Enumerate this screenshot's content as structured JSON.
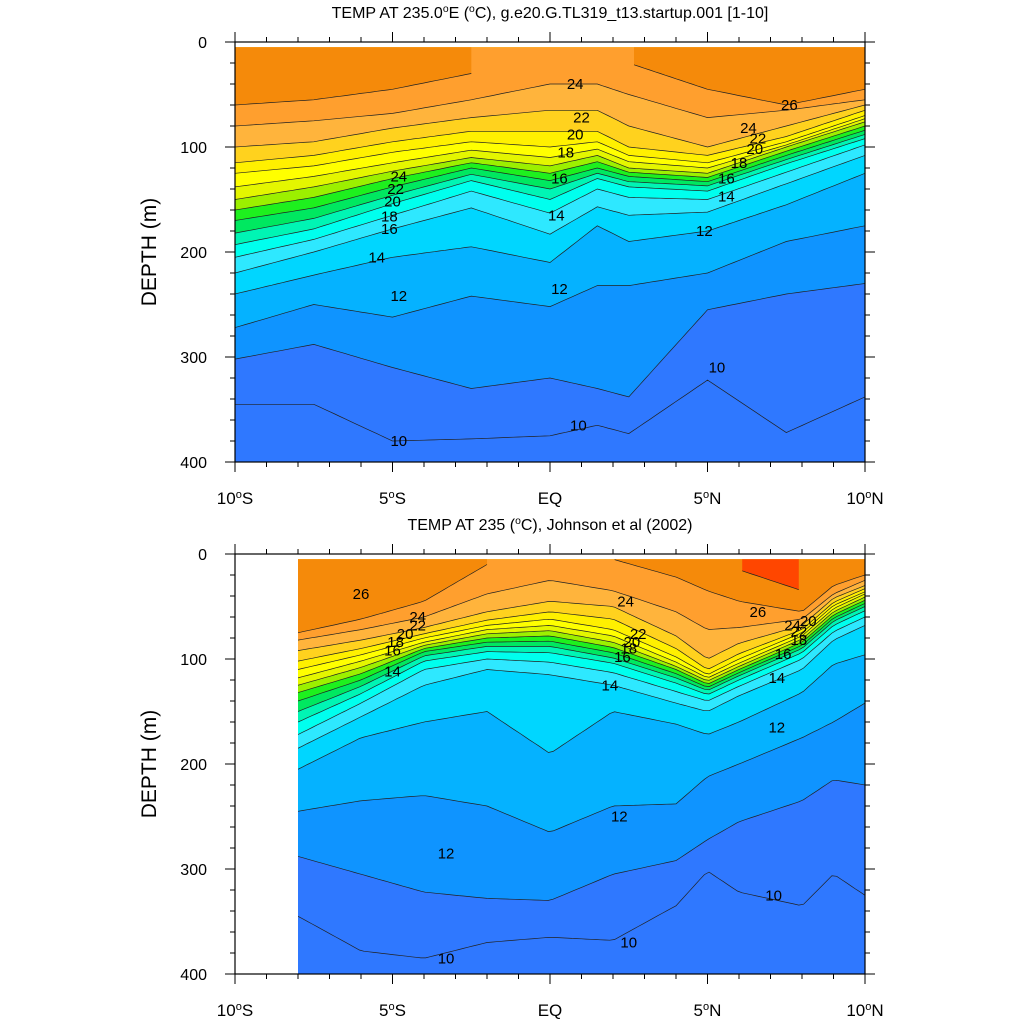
{
  "chart_data": [
    {
      "type": "heatmap",
      "subtype": "filled-contour",
      "title": "TEMP AT 235.0°E (°C), g.e20.G.TL319_t13.startup.001 [1-10]",
      "xlabel": "",
      "ylabel": "DEPTH (m)",
      "xlim": [
        -10,
        10
      ],
      "ylim": [
        400,
        0
      ],
      "x_ticks": [
        {
          "value": -10,
          "label": "10°S"
        },
        {
          "value": -5,
          "label": "5°S"
        },
        {
          "value": 0,
          "label": "EQ"
        },
        {
          "value": 5,
          "label": "5°N"
        },
        {
          "value": 10,
          "label": "10°N"
        }
      ],
      "y_ticks": [
        {
          "value": 0,
          "label": "0"
        },
        {
          "value": 100,
          "label": "100"
        },
        {
          "value": 200,
          "label": "200"
        },
        {
          "value": 300,
          "label": "300"
        },
        {
          "value": 400,
          "label": "400"
        }
      ],
      "data_xrange": [
        -10,
        10
      ],
      "data_top_depth": 5,
      "levels": [
        {
          "value": 10,
          "color": "#2f78ff"
        },
        {
          "value": 11,
          "color": "#0f94ff"
        },
        {
          "value": 12,
          "color": "#05b2ff"
        },
        {
          "value": 13,
          "color": "#00d6ff"
        },
        {
          "value": 14,
          "color": "#2ee8ff"
        },
        {
          "value": 15,
          "color": "#00ffee"
        },
        {
          "value": 16,
          "color": "#00f5b4"
        },
        {
          "value": 17,
          "color": "#00e860"
        },
        {
          "value": 18,
          "color": "#1ef01e"
        },
        {
          "value": 19,
          "color": "#9cf000"
        },
        {
          "value": 20,
          "color": "#e4f600"
        },
        {
          "value": 21,
          "color": "#ffff00"
        },
        {
          "value": 22,
          "color": "#fff000"
        },
        {
          "value": 23,
          "color": "#ffd21e"
        },
        {
          "value": 24,
          "color": "#ffb43c"
        },
        {
          "value": 25,
          "color": "#ff9f2e"
        },
        {
          "value": 26,
          "color": "#f58a0a"
        },
        {
          "value": 27,
          "color": "#ff4600"
        }
      ],
      "isotherm_depths": {
        "x": [
          -10,
          -7.5,
          -5,
          -2.5,
          0,
          1.5,
          2.5,
          5,
          7.5,
          10
        ],
        "27": [
          null,
          null,
          null,
          null,
          null,
          null,
          null,
          null,
          35,
          null
        ],
        "26": [
          60,
          55,
          45,
          30,
          null,
          null,
          20,
          45,
          60,
          45
        ],
        "25": [
          80,
          75,
          68,
          55,
          40,
          40,
          50,
          72,
          65,
          55
        ],
        "24": [
          100,
          95,
          82,
          72,
          65,
          65,
          80,
          100,
          80,
          60
        ],
        "23": [
          115,
          108,
          95,
          85,
          85,
          85,
          100,
          108,
          90,
          65
        ],
        "22": [
          125,
          118,
          105,
          95,
          100,
          95,
          108,
          115,
          95,
          70
        ],
        "21": [
          138,
          128,
          115,
          103,
          110,
          102,
          114,
          120,
          98,
          73
        ],
        "20": [
          150,
          138,
          123,
          110,
          118,
          108,
          120,
          125,
          100,
          76
        ],
        "19": [
          160,
          148,
          130,
          115,
          125,
          114,
          124,
          129,
          104,
          80
        ],
        "18": [
          170,
          158,
          138,
          120,
          132,
          120,
          128,
          133,
          108,
          84
        ],
        "17": [
          182,
          168,
          146,
          126,
          140,
          125,
          133,
          137,
          112,
          88
        ],
        "16": [
          193,
          178,
          154,
          132,
          150,
          130,
          138,
          142,
          116,
          92
        ],
        "15": [
          205,
          188,
          165,
          142,
          163,
          140,
          148,
          150,
          124,
          98
        ],
        "14": [
          220,
          200,
          178,
          158,
          183,
          157,
          165,
          162,
          135,
          108
        ],
        "13": [
          240,
          222,
          205,
          195,
          210,
          175,
          190,
          180,
          155,
          125
        ],
        "12": [
          272,
          250,
          262,
          242,
          252,
          232,
          232,
          220,
          190,
          175
        ],
        "11": [
          302,
          288,
          310,
          330,
          320,
          330,
          338,
          255,
          240,
          230
        ],
        "10": [
          345,
          345,
          380,
          378,
          375,
          365,
          373,
          322,
          372,
          338
        ]
      },
      "contour_labels": [
        {
          "x": -4.8,
          "depth": 128,
          "text": "24"
        },
        {
          "x": -4.9,
          "depth": 140,
          "text": "22"
        },
        {
          "x": -5.0,
          "depth": 152,
          "text": "20"
        },
        {
          "x": -5.1,
          "depth": 166,
          "text": "18"
        },
        {
          "x": -5.1,
          "depth": 178,
          "text": "16"
        },
        {
          "x": -5.5,
          "depth": 205,
          "text": "14"
        },
        {
          "x": -4.8,
          "depth": 242,
          "text": "12"
        },
        {
          "x": -4.8,
          "depth": 380,
          "text": "10"
        },
        {
          "x": 0.8,
          "depth": 40,
          "text": "24"
        },
        {
          "x": 1.0,
          "depth": 72,
          "text": "22"
        },
        {
          "x": 0.8,
          "depth": 88,
          "text": "20"
        },
        {
          "x": 0.5,
          "depth": 105,
          "text": "18"
        },
        {
          "x": 0.3,
          "depth": 130,
          "text": "16"
        },
        {
          "x": 0.2,
          "depth": 165,
          "text": "14"
        },
        {
          "x": 0.3,
          "depth": 235,
          "text": "12"
        },
        {
          "x": 0.9,
          "depth": 365,
          "text": "10"
        },
        {
          "x": 7.6,
          "depth": 60,
          "text": "26"
        },
        {
          "x": 6.3,
          "depth": 82,
          "text": "24"
        },
        {
          "x": 6.6,
          "depth": 92,
          "text": "22"
        },
        {
          "x": 6.5,
          "depth": 102,
          "text": "20"
        },
        {
          "x": 6.0,
          "depth": 115,
          "text": "18"
        },
        {
          "x": 5.6,
          "depth": 130,
          "text": "16"
        },
        {
          "x": 5.6,
          "depth": 147,
          "text": "14"
        },
        {
          "x": 4.9,
          "depth": 180,
          "text": "12"
        },
        {
          "x": 5.3,
          "depth": 310,
          "text": "10"
        }
      ]
    },
    {
      "type": "heatmap",
      "subtype": "filled-contour",
      "title": "TEMP AT 235 (°C), Johnson et al (2002)",
      "xlabel": "",
      "ylabel": "DEPTH (m)",
      "xlim": [
        -10,
        10
      ],
      "ylim": [
        400,
        0
      ],
      "x_ticks": [
        {
          "value": -10,
          "label": "10°S"
        },
        {
          "value": -5,
          "label": "5°S"
        },
        {
          "value": 0,
          "label": "EQ"
        },
        {
          "value": 5,
          "label": "5°N"
        },
        {
          "value": 10,
          "label": "10°N"
        }
      ],
      "y_ticks": [
        {
          "value": 0,
          "label": "0"
        },
        {
          "value": 100,
          "label": "100"
        },
        {
          "value": 200,
          "label": "200"
        },
        {
          "value": 300,
          "label": "300"
        },
        {
          "value": 400,
          "label": "400"
        }
      ],
      "data_xrange": [
        -8,
        10
      ],
      "data_top_depth": 5,
      "levels": [
        {
          "value": 10,
          "color": "#2f78ff"
        },
        {
          "value": 11,
          "color": "#0f94ff"
        },
        {
          "value": 12,
          "color": "#05b2ff"
        },
        {
          "value": 13,
          "color": "#00d6ff"
        },
        {
          "value": 14,
          "color": "#2ee8ff"
        },
        {
          "value": 15,
          "color": "#00ffee"
        },
        {
          "value": 16,
          "color": "#00f5b4"
        },
        {
          "value": 17,
          "color": "#00e860"
        },
        {
          "value": 18,
          "color": "#1ef01e"
        },
        {
          "value": 19,
          "color": "#9cf000"
        },
        {
          "value": 20,
          "color": "#e4f600"
        },
        {
          "value": 21,
          "color": "#ffff00"
        },
        {
          "value": 22,
          "color": "#fff000"
        },
        {
          "value": 23,
          "color": "#ffd21e"
        },
        {
          "value": 24,
          "color": "#ffb43c"
        },
        {
          "value": 25,
          "color": "#ff9f2e"
        },
        {
          "value": 26,
          "color": "#f58a0a"
        },
        {
          "value": 27,
          "color": "#ff4600"
        }
      ],
      "isotherm_depths": {
        "x": [
          -8,
          -6,
          -4,
          -2,
          0,
          2,
          4,
          5,
          6,
          8,
          9,
          10
        ],
        "27": [
          null,
          null,
          null,
          null,
          null,
          null,
          null,
          null,
          15,
          35,
          null,
          15
        ],
        "26": [
          75,
          62,
          45,
          10,
          null,
          5,
          22,
          35,
          45,
          55,
          30,
          20
        ],
        "25": [
          82,
          72,
          60,
          38,
          25,
          35,
          55,
          72,
          70,
          62,
          38,
          25
        ],
        "24": [
          92,
          82,
          70,
          55,
          45,
          50,
          78,
          100,
          85,
          68,
          42,
          30
        ],
        "23": [
          102,
          90,
          76,
          63,
          55,
          62,
          90,
          110,
          95,
          72,
          46,
          33
        ],
        "22": [
          110,
          96,
          80,
          68,
          62,
          72,
          98,
          115,
          100,
          75,
          49,
          36
        ],
        "21": [
          118,
          102,
          84,
          72,
          68,
          78,
          103,
          118,
          104,
          78,
          52,
          38
        ],
        "20": [
          125,
          108,
          87,
          76,
          73,
          84,
          107,
          121,
          107,
          81,
          55,
          41
        ],
        "19": [
          132,
          114,
          90,
          80,
          78,
          89,
          110,
          124,
          110,
          84,
          58,
          44
        ],
        "18": [
          140,
          120,
          93,
          84,
          83,
          94,
          114,
          127,
          113,
          87,
          61,
          47
        ],
        "17": [
          150,
          126,
          97,
          88,
          88,
          99,
          118,
          130,
          116,
          90,
          64,
          50
        ],
        "16": [
          160,
          133,
          102,
          93,
          94,
          104,
          123,
          134,
          120,
          94,
          68,
          54
        ],
        "15": [
          172,
          142,
          110,
          100,
          103,
          113,
          131,
          140,
          126,
          100,
          74,
          60
        ],
        "14": [
          185,
          155,
          125,
          110,
          115,
          125,
          142,
          150,
          135,
          110,
          82,
          68
        ],
        "13": [
          205,
          175,
          160,
          150,
          190,
          150,
          162,
          172,
          160,
          132,
          105,
          96
        ],
        "12": [
          245,
          235,
          230,
          240,
          265,
          240,
          238,
          212,
          200,
          175,
          160,
          142
        ],
        "11": [
          288,
          305,
          322,
          328,
          330,
          305,
          292,
          272,
          255,
          235,
          215,
          220
        ],
        "10": [
          345,
          378,
          385,
          370,
          365,
          368,
          335,
          302,
          322,
          335,
          305,
          325
        ]
      },
      "contour_labels": [
        {
          "x": -6.0,
          "depth": 38,
          "text": "26"
        },
        {
          "x": -4.2,
          "depth": 60,
          "text": "24"
        },
        {
          "x": -4.2,
          "depth": 68,
          "text": "22"
        },
        {
          "x": -4.6,
          "depth": 76,
          "text": "20"
        },
        {
          "x": -4.9,
          "depth": 84,
          "text": "18"
        },
        {
          "x": -5.0,
          "depth": 92,
          "text": "16"
        },
        {
          "x": -5.0,
          "depth": 112,
          "text": "14"
        },
        {
          "x": -3.3,
          "depth": 285,
          "text": "12"
        },
        {
          "x": -3.3,
          "depth": 385,
          "text": "10"
        },
        {
          "x": 2.4,
          "depth": 45,
          "text": "24"
        },
        {
          "x": 2.8,
          "depth": 76,
          "text": "22"
        },
        {
          "x": 2.6,
          "depth": 84,
          "text": "20"
        },
        {
          "x": 2.5,
          "depth": 90,
          "text": "18"
        },
        {
          "x": 2.3,
          "depth": 98,
          "text": "16"
        },
        {
          "x": 1.9,
          "depth": 125,
          "text": "14"
        },
        {
          "x": 2.2,
          "depth": 250,
          "text": "12"
        },
        {
          "x": 2.5,
          "depth": 370,
          "text": "10"
        },
        {
          "x": 6.6,
          "depth": 55,
          "text": "26"
        },
        {
          "x": 7.7,
          "depth": 68,
          "text": "24"
        },
        {
          "x": 7.9,
          "depth": 74,
          "text": "22"
        },
        {
          "x": 8.2,
          "depth": 64,
          "text": "20"
        },
        {
          "x": 7.9,
          "depth": 82,
          "text": "18"
        },
        {
          "x": 7.4,
          "depth": 95,
          "text": "16"
        },
        {
          "x": 7.2,
          "depth": 118,
          "text": "14"
        },
        {
          "x": 7.2,
          "depth": 165,
          "text": "12"
        },
        {
          "x": 7.1,
          "depth": 325,
          "text": "10"
        }
      ]
    }
  ]
}
